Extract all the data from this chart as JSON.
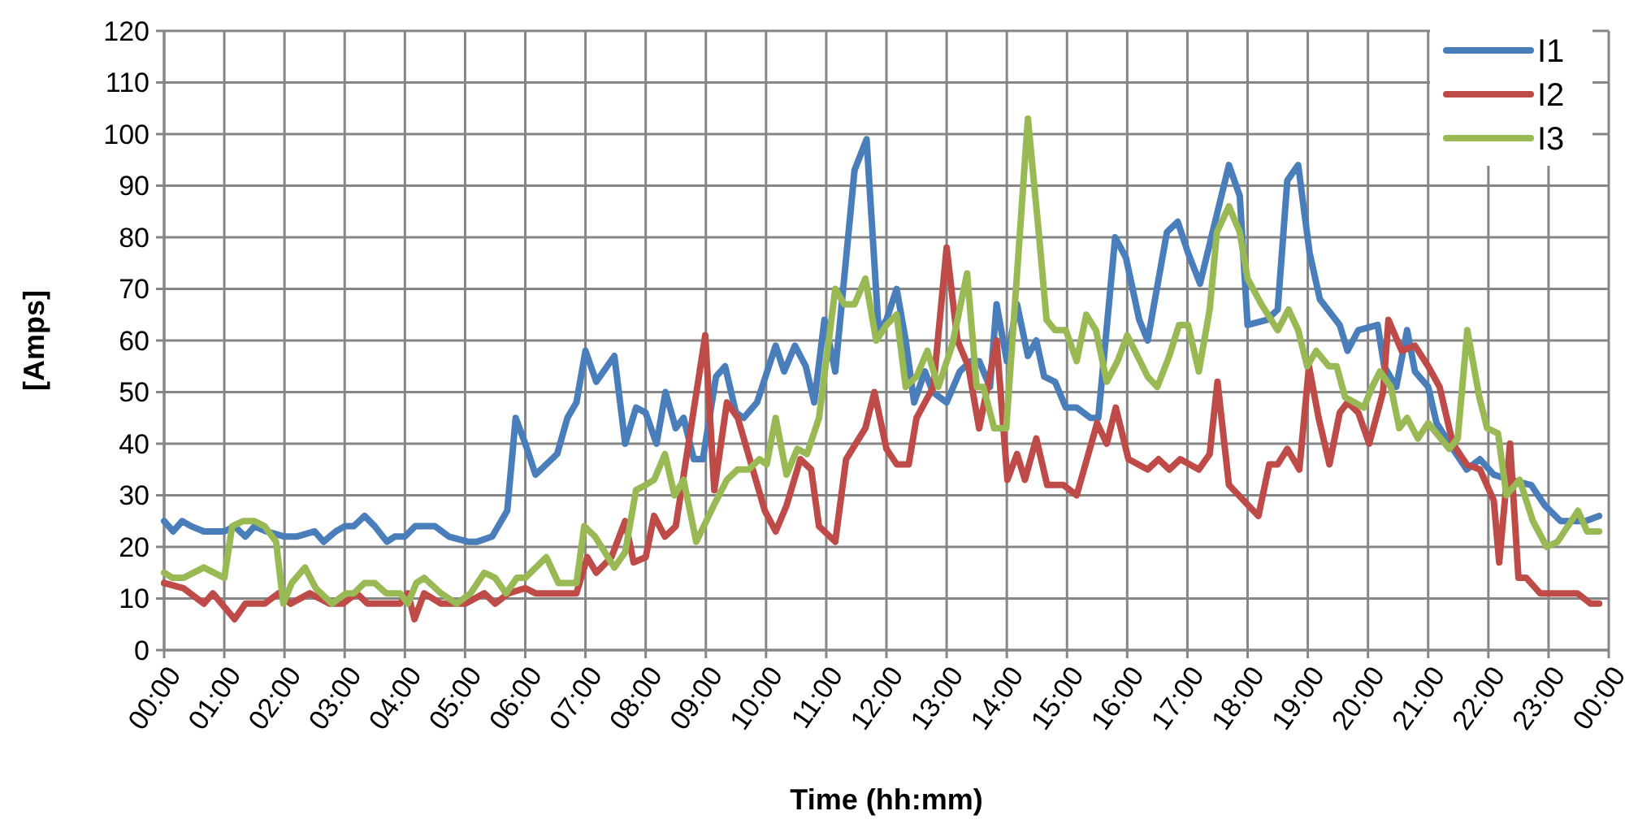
{
  "chart_data": {
    "type": "line",
    "xlabel": "Time (hh:mm)",
    "ylabel": "[Amps]",
    "xlim": [
      0,
      24
    ],
    "ylim": [
      0,
      120
    ],
    "xticks": [
      {
        "value": 0,
        "label": "00:00"
      },
      {
        "value": 1,
        "label": "01:00"
      },
      {
        "value": 2,
        "label": "02:00"
      },
      {
        "value": 3,
        "label": "03:00"
      },
      {
        "value": 4,
        "label": "04:00"
      },
      {
        "value": 5,
        "label": "05:00"
      },
      {
        "value": 6,
        "label": "06:00"
      },
      {
        "value": 7,
        "label": "07:00"
      },
      {
        "value": 8,
        "label": "08:00"
      },
      {
        "value": 9,
        "label": "09:00"
      },
      {
        "value": 10,
        "label": "10:00"
      },
      {
        "value": 11,
        "label": "11:00"
      },
      {
        "value": 12,
        "label": "12:00"
      },
      {
        "value": 13,
        "label": "13:00"
      },
      {
        "value": 14,
        "label": "14:00"
      },
      {
        "value": 15,
        "label": "15:00"
      },
      {
        "value": 16,
        "label": "16:00"
      },
      {
        "value": 17,
        "label": "17:00"
      },
      {
        "value": 18,
        "label": "18:00"
      },
      {
        "value": 19,
        "label": "19:00"
      },
      {
        "value": 20,
        "label": "20:00"
      },
      {
        "value": 21,
        "label": "21:00"
      },
      {
        "value": 22,
        "label": "22:00"
      },
      {
        "value": 23,
        "label": "23:00"
      },
      {
        "value": 24,
        "label": "00:00"
      }
    ],
    "yticks": [
      0,
      10,
      20,
      30,
      40,
      50,
      60,
      70,
      80,
      90,
      100,
      110,
      120
    ],
    "grid": true,
    "legend": "top right",
    "marker": "none",
    "line_style": "solid",
    "series": [
      {
        "name": "I1",
        "color": "#4a7ebb",
        "x": [
          0,
          0.15,
          0.3,
          0.45,
          0.66,
          1,
          1.17,
          1.35,
          1.5,
          1.7,
          2,
          2.2,
          2.5,
          2.65,
          2.85,
          3,
          3.15,
          3.33,
          3.5,
          3.7,
          3.83,
          4,
          4.17,
          4.3,
          4.5,
          4.73,
          5.05,
          5.2,
          5.45,
          5.7,
          5.84,
          6,
          6.17,
          6.53,
          6.7,
          6.85,
          7,
          7.18,
          7.48,
          7.66,
          7.84,
          8,
          8.18,
          8.33,
          8.5,
          8.63,
          8.8,
          8.95,
          9.17,
          9.32,
          9.5,
          9.63,
          9.85,
          10.16,
          10.3,
          10.48,
          10.66,
          10.8,
          10.97,
          11.15,
          11.47,
          11.67,
          11.87,
          12,
          12.17,
          12.32,
          12.46,
          12.64,
          12.77,
          13,
          13.22,
          13.4,
          13.54,
          13.72,
          13.83,
          14,
          14.17,
          14.35,
          14.49,
          14.62,
          14.8,
          14.98,
          15.16,
          15.39,
          15.52,
          15.8,
          15.98,
          16.2,
          16.34,
          16.66,
          16.84,
          17.01,
          17.21,
          17.46,
          17.69,
          17.87,
          18,
          18.32,
          18.5,
          18.66,
          18.84,
          19.03,
          19.2,
          19.53,
          19.66,
          19.84,
          20.16,
          20.27,
          20.47,
          20.65,
          20.78,
          21,
          21.14,
          21.41,
          21.64,
          21.86,
          22.09,
          22.36,
          22.71,
          22.94,
          23.2,
          23.39,
          23.61,
          23.84
        ],
        "values": [
          25,
          23,
          25,
          24,
          23,
          23,
          24,
          22,
          24,
          23,
          22,
          22,
          23,
          21,
          23,
          24,
          24,
          26,
          24,
          21,
          22,
          22,
          24,
          24,
          24,
          22,
          21,
          21,
          22,
          27,
          45,
          40,
          34,
          38,
          45,
          48,
          58,
          52,
          57,
          40,
          47,
          46,
          40,
          50,
          43,
          45,
          37,
          37,
          53,
          55,
          46,
          45,
          48,
          59,
          54,
          59,
          55,
          48,
          64,
          54,
          93,
          99,
          62,
          64,
          70,
          60,
          48,
          54,
          50,
          48,
          54,
          56,
          56,
          51,
          67,
          56,
          67,
          57,
          60,
          53,
          52,
          47,
          47,
          45,
          45,
          80,
          76,
          64,
          60,
          81,
          83,
          77,
          71,
          83,
          94,
          88,
          63,
          64,
          66,
          91,
          94,
          77,
          68,
          63,
          58,
          62,
          63,
          55,
          51,
          62,
          54,
          51,
          44,
          39,
          35,
          37,
          34,
          33,
          32,
          28,
          25,
          25,
          25,
          26
        ]
      },
      {
        "name": "I2",
        "color": "#be4b48",
        "x": [
          0,
          0.32,
          0.66,
          0.81,
          1.17,
          1.35,
          1.67,
          1.9,
          2.1,
          2.42,
          2.75,
          2.97,
          3.2,
          3.38,
          3.92,
          4.05,
          4.16,
          4.32,
          4.6,
          5,
          5.32,
          5.5,
          5.72,
          6,
          6.17,
          6.85,
          7.03,
          7.18,
          7.43,
          7.66,
          7.8,
          8,
          8.14,
          8.32,
          8.5,
          8.99,
          9.14,
          9.35,
          9.53,
          9.98,
          10.16,
          10.34,
          10.57,
          10.75,
          10.88,
          11.15,
          11.33,
          11.65,
          11.8,
          12,
          12.17,
          12.37,
          12.5,
          12.78,
          13,
          13.18,
          13.36,
          13.54,
          13.68,
          13.83,
          14.01,
          14.17,
          14.3,
          14.49,
          14.67,
          14.94,
          15.16,
          15.5,
          15.66,
          15.81,
          16.02,
          16.34,
          16.52,
          16.7,
          16.88,
          17.19,
          17.37,
          17.5,
          17.69,
          18.18,
          18.36,
          18.5,
          18.66,
          18.86,
          19.02,
          19.18,
          19.36,
          19.53,
          19.66,
          19.84,
          20.02,
          20.25,
          20.34,
          20.56,
          20.78,
          21,
          21.19,
          21.41,
          21.64,
          21.86,
          22.09,
          22.18,
          22.36,
          22.5,
          22.63,
          22.86,
          23.48,
          23.7,
          23.84
        ],
        "values": [
          13,
          12,
          9,
          11,
          6,
          9,
          9,
          11,
          9,
          11,
          9,
          9,
          11,
          9,
          9,
          11,
          6,
          11,
          9,
          9,
          11,
          9,
          11,
          12,
          11,
          11,
          18,
          15,
          18,
          25,
          17,
          18,
          26,
          22,
          24,
          61,
          31,
          48,
          45,
          27,
          23,
          28,
          37,
          35,
          24,
          21,
          37,
          43,
          50,
          39,
          36,
          36,
          45,
          51,
          78,
          60,
          55,
          43,
          51,
          60,
          33,
          38,
          33,
          41,
          32,
          32,
          30,
          44,
          40,
          47,
          37,
          35,
          37,
          35,
          37,
          35,
          38,
          52,
          32,
          26,
          36,
          36,
          39,
          35,
          55,
          45,
          36,
          46,
          48,
          46,
          40,
          50,
          64,
          58,
          59,
          55,
          51,
          40,
          36,
          35,
          29,
          17,
          40,
          14,
          14,
          11,
          11,
          9,
          9
        ]
      },
      {
        "name": "I3",
        "color": "#98b954",
        "x": [
          0,
          0.14,
          0.32,
          0.66,
          1,
          1.13,
          1.31,
          1.5,
          1.67,
          1.86,
          1.98,
          2.12,
          2.34,
          2.52,
          2.79,
          3.02,
          3.15,
          3.33,
          3.5,
          3.69,
          3.92,
          4.05,
          4.19,
          4.32,
          4.6,
          4.86,
          5.09,
          5.32,
          5.5,
          5.68,
          5.86,
          6,
          6.35,
          6.55,
          6.85,
          6.98,
          7.16,
          7.48,
          7.66,
          7.84,
          8,
          8.14,
          8.32,
          8.48,
          8.63,
          8.84,
          9.13,
          9.35,
          9.53,
          9.71,
          9.89,
          10.01,
          10.16,
          10.34,
          10.52,
          10.68,
          10.88,
          11.15,
          11.3,
          11.47,
          11.65,
          11.83,
          12,
          12.17,
          12.32,
          12.5,
          12.68,
          12.86,
          13.09,
          13.34,
          13.5,
          13.61,
          13.79,
          13.99,
          14.35,
          14.53,
          14.66,
          14.8,
          14.98,
          15.16,
          15.32,
          15.48,
          15.66,
          15.84,
          16,
          16.17,
          16.34,
          16.5,
          16.7,
          16.86,
          17.01,
          17.19,
          17.37,
          17.49,
          17.69,
          17.87,
          18,
          18.23,
          18.5,
          18.68,
          18.84,
          18.99,
          19.14,
          19.35,
          19.48,
          19.62,
          19.93,
          20.07,
          20.2,
          20.38,
          20.52,
          20.65,
          20.83,
          21,
          21.35,
          21.49,
          21.65,
          21.85,
          21.98,
          22.16,
          22.3,
          22.52,
          22.74,
          22.97,
          23.15,
          23.49,
          23.64,
          23.84
        ],
        "values": [
          15,
          14,
          14,
          16,
          14,
          24,
          25,
          25,
          24,
          21,
          9,
          13,
          16,
          12,
          9,
          11,
          11,
          13,
          13,
          11,
          11,
          9,
          13,
          14,
          11,
          9,
          11,
          15,
          14,
          11,
          14,
          14,
          18,
          13,
          13,
          24,
          22,
          16,
          19,
          31,
          32,
          33,
          38,
          30,
          33,
          21,
          28,
          33,
          35,
          35,
          37,
          36,
          45,
          34,
          39,
          38,
          45,
          70,
          67,
          67,
          72,
          60,
          63,
          65,
          51,
          53,
          58,
          51,
          59,
          73,
          51,
          51,
          43,
          43,
          103,
          81,
          64,
          62,
          62,
          56,
          65,
          62,
          52,
          56,
          61,
          57,
          53,
          51,
          57,
          63,
          63,
          54,
          66,
          81,
          86,
          81,
          72,
          67,
          62,
          66,
          62,
          55,
          58,
          55,
          55,
          49,
          47,
          51,
          54,
          51,
          43,
          45,
          41,
          44,
          39,
          41,
          62,
          49,
          43,
          42,
          30,
          33,
          25,
          20,
          21,
          27,
          23,
          23
        ]
      }
    ]
  }
}
